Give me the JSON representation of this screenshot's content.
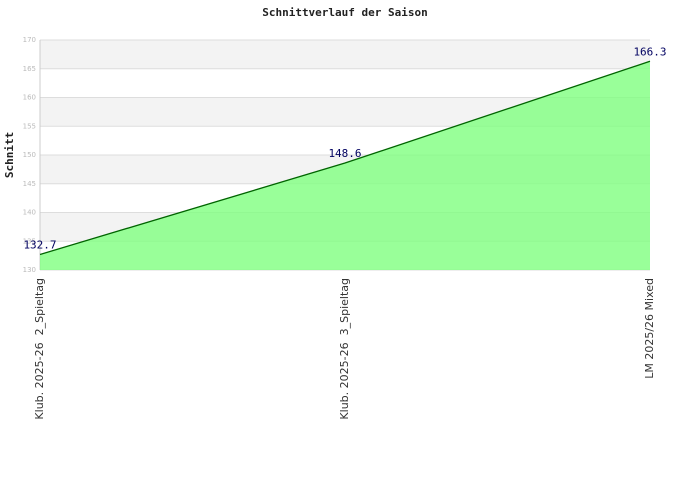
{
  "chart_data": {
    "type": "area",
    "title": "Schnittverlauf der Saison",
    "y_label": "Schnitt",
    "categories": [
      "Klub. 2025-26  2_Spieltag",
      "Klub. 2025-26  3_Spieltag",
      "LM 2025/26 Mixed"
    ],
    "values": [
      132.7,
      148.6,
      166.3
    ],
    "color": "#006400",
    "fill_color": "#80ff80",
    "ylim": [
      130,
      170
    ],
    "yticks": [
      130,
      135,
      140,
      145,
      150,
      155,
      160,
      165,
      170
    ],
    "grid": true
  }
}
